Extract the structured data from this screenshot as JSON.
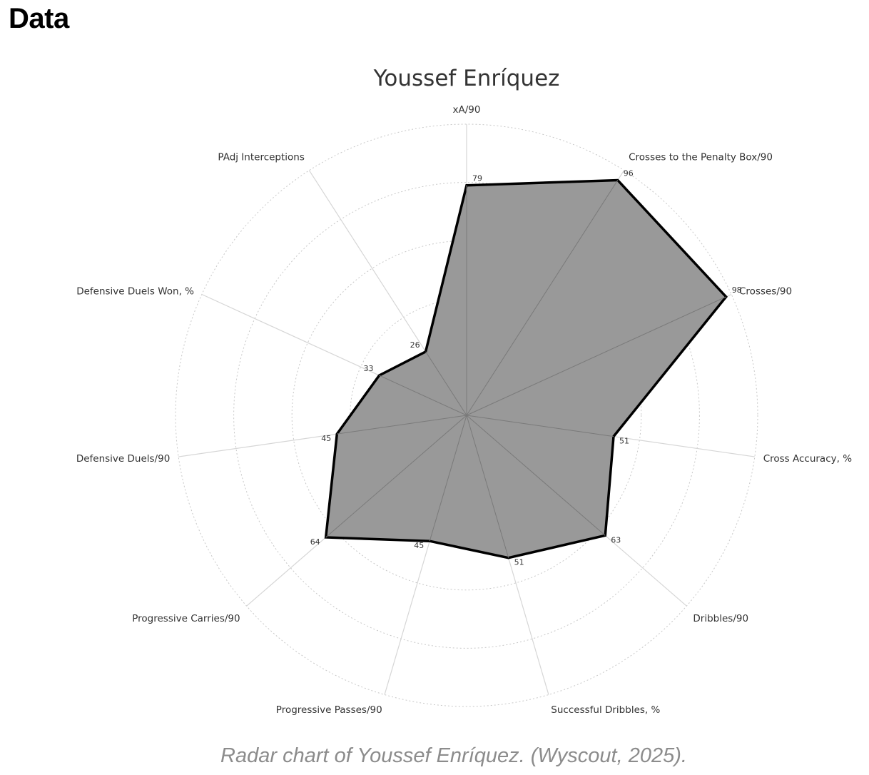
{
  "heading": "Data",
  "caption": "Radar chart of Youssef Enríquez. (Wyscout, 2025).",
  "chart_data": {
    "type": "radar",
    "title": "Youssef Enríquez",
    "rlim": [
      0,
      100
    ],
    "rings": [
      20,
      40,
      60,
      80,
      100
    ],
    "grid": true,
    "fill_color": "#999999",
    "stroke_color": "#000000",
    "categories": [
      "xA/90",
      "Crosses to the Penalty Box/90",
      "Crosses/90",
      "Cross Accuracy, %",
      "Dribbles/90",
      "Successful Dribbles, %",
      "Progressive Passes/90",
      "Progressive Carries/90",
      "Defensive Duels/90",
      "Defensive Duels Won, %",
      "PAdj Interceptions"
    ],
    "values": [
      79,
      96,
      98,
      51,
      63,
      51,
      45,
      64,
      45,
      33,
      26
    ],
    "value_labels": [
      "79",
      "96",
      "98",
      "51",
      "63",
      "51",
      "45",
      "64",
      "45",
      "33",
      "26"
    ]
  }
}
